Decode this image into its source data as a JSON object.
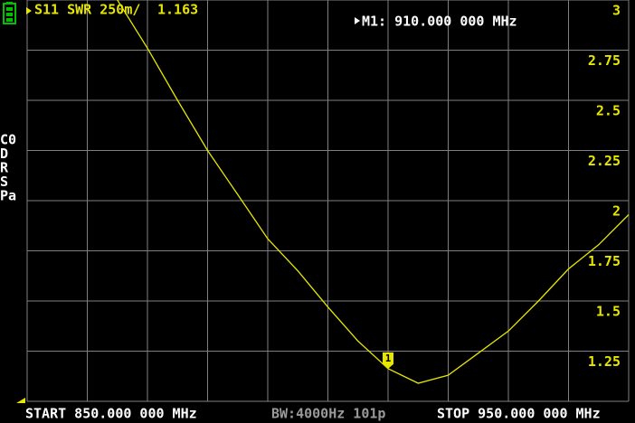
{
  "chart_data": {
    "type": "line",
    "trace": "S11 SWR 250m/",
    "color": "#e6e600",
    "x": [
      865,
      870,
      875,
      880,
      885,
      890,
      895,
      900,
      905,
      910,
      915,
      920,
      925,
      930,
      935,
      940,
      945,
      950
    ],
    "values": [
      3.0,
      2.76,
      2.5,
      2.25,
      2.03,
      1.81,
      1.65,
      1.47,
      1.3,
      1.163,
      1.09,
      1.13,
      1.24,
      1.35,
      1.5,
      1.66,
      1.78,
      1.93
    ],
    "xlim": [
      850,
      950
    ],
    "ylim": [
      1,
      3
    ],
    "yticks": [
      1.25,
      1.5,
      1.75,
      2,
      2.25,
      2.5,
      2.75,
      3
    ],
    "grid": true,
    "marker": {
      "label": "1",
      "x": 910,
      "value": 1.163,
      "readout": "M1: 910.000 000 MHz"
    },
    "status": [
      "C0",
      "D",
      "R",
      "S",
      "Pa"
    ],
    "start": "START 850.000 000 MHz",
    "bandwidth": "BW:4000Hz 101p",
    "stop": "STOP 950.000 000 MHz"
  }
}
